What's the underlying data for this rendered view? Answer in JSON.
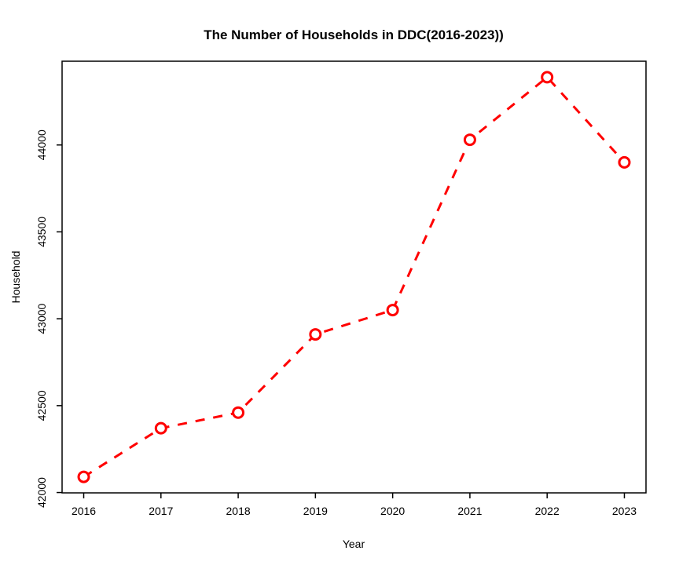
{
  "page": {
    "background": "#ffffff"
  },
  "chart_data": {
    "type": "line",
    "title": "The Number of Households in DDC(2016-2023))",
    "xlabel": "Year",
    "ylabel": "Household",
    "x": [
      2016,
      2017,
      2018,
      2019,
      2020,
      2021,
      2022,
      2023
    ],
    "series": [
      {
        "name": "Household",
        "values": [
          42090,
          42370,
          42460,
          42910,
          43050,
          44030,
          44390,
          43900
        ]
      }
    ],
    "x_ticks": [
      2016,
      2017,
      2018,
      2019,
      2020,
      2021,
      2022,
      2023
    ],
    "y_ticks": [
      42000,
      42500,
      43000,
      43500,
      44000
    ],
    "xlim": [
      2015.72,
      2023.28
    ],
    "ylim": [
      41998,
      44482
    ],
    "grid": false,
    "legend": "none",
    "line_style": "dashed",
    "marker": "open-circle",
    "line_color": "#FF0000",
    "axis_color": "#000000",
    "text_color": "#000000"
  }
}
